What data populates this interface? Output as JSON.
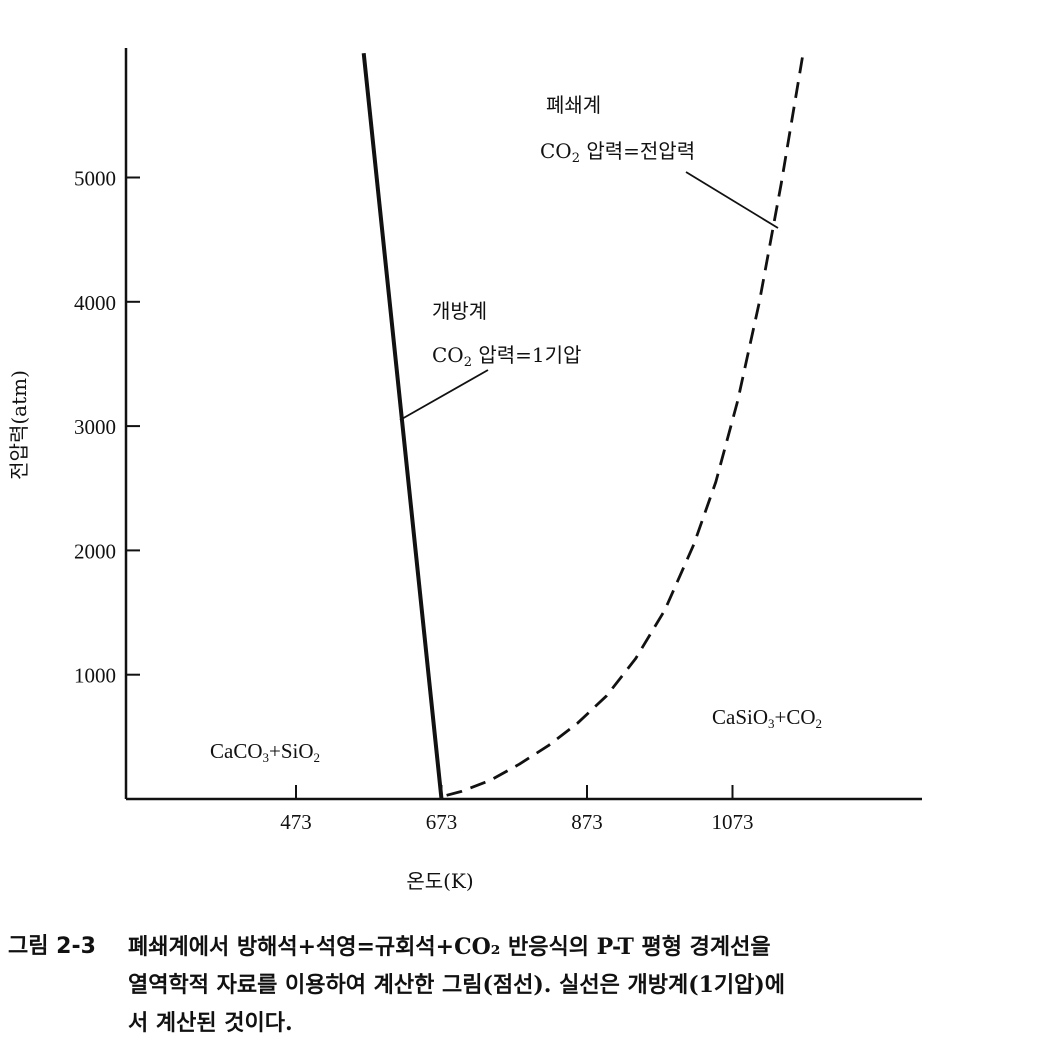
{
  "chart_data": {
    "type": "line",
    "xlabel": "온도(K)",
    "ylabel": "전압력(atm)",
    "xlim": [
      300,
      1200
    ],
    "ylim": [
      0,
      6000
    ],
    "x_ticks": [
      473,
      673,
      873,
      1073
    ],
    "y_ticks": [
      1000,
      2000,
      3000,
      4000,
      5000
    ],
    "grid": false,
    "series": [
      {
        "style": "solid",
        "color": "#111111",
        "points": [
          [
            673,
            0
          ],
          [
            566,
            6000
          ]
        ]
      },
      {
        "style": "dashed",
        "color": "#111111",
        "points": [
          [
            680,
            30
          ],
          [
            700,
            60
          ],
          [
            740,
            150
          ],
          [
            780,
            280
          ],
          [
            820,
            430
          ],
          [
            860,
            610
          ],
          [
            900,
            830
          ],
          [
            940,
            1130
          ],
          [
            980,
            1520
          ],
          [
            1020,
            2050
          ],
          [
            1050,
            2550
          ],
          [
            1080,
            3200
          ],
          [
            1110,
            4000
          ],
          [
            1140,
            4950
          ],
          [
            1170,
            6000
          ]
        ]
      }
    ],
    "annotations": {
      "open_system": {
        "title": "개방계",
        "co2": "CO",
        "co2_sub": "2",
        "text": " 압력=1기압"
      },
      "closed_system": {
        "title": "폐쇄계",
        "co2": "CO",
        "co2_sub": "2",
        "text": " 압력=전압력"
      },
      "left_region": {
        "p1": "CaCO",
        "s1": "3",
        "p2": "+SiO",
        "s2": "2"
      },
      "right_region": {
        "p1": "CaSiO",
        "s1": "3",
        "p2": "+CO",
        "s2": "2"
      }
    }
  },
  "caption": {
    "label": "그림 2-3",
    "lines": [
      "폐쇄계에서 방해석+석영=규회석+CO₂ 반응식의 P-T 평형 경계선을",
      "열역학적 자료를 이용하여 계산한 그림(점선). 실선은 개방계(1기압)에",
      "서 계산된 것이다."
    ]
  }
}
